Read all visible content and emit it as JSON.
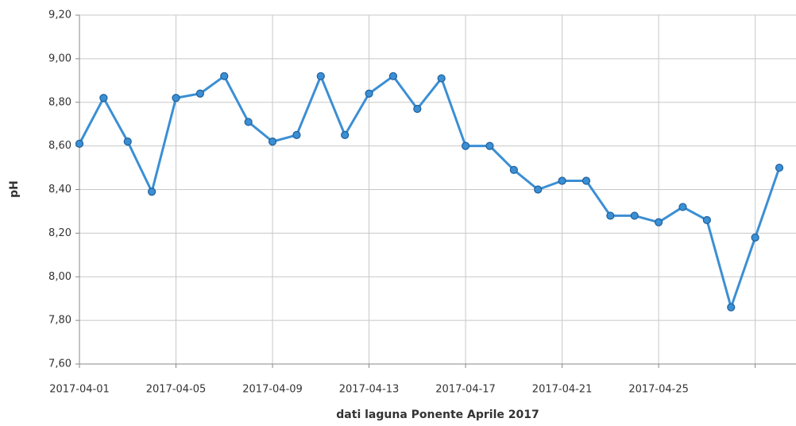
{
  "chart_data": {
    "type": "line",
    "x_label": "dati laguna Ponente Aprile 2017",
    "y_label": "pH",
    "x": [
      "2017-04-01",
      "2017-04-02",
      "2017-04-03",
      "2017-04-04",
      "2017-04-05",
      "2017-04-06",
      "2017-04-07",
      "2017-04-08",
      "2017-04-09",
      "2017-04-10",
      "2017-04-11",
      "2017-04-12",
      "2017-04-13",
      "2017-04-14",
      "2017-04-15",
      "2017-04-16",
      "2017-04-17",
      "2017-04-18",
      "2017-04-19",
      "2017-04-20",
      "2017-04-21",
      "2017-04-22",
      "2017-04-23",
      "2017-04-24",
      "2017-04-25",
      "2017-04-26",
      "2017-04-27",
      "2017-04-28",
      "2017-04-29",
      "2017-04-30"
    ],
    "series": [
      {
        "color": "#3b8fd4",
        "values": [
          8.61,
          8.82,
          8.62,
          8.39,
          8.82,
          8.84,
          8.92,
          8.71,
          8.62,
          8.65,
          8.92,
          8.65,
          8.84,
          8.92,
          8.77,
          8.91,
          8.6,
          8.6,
          8.49,
          8.4,
          8.44,
          8.44,
          8.28,
          8.28,
          8.25,
          8.32,
          8.26,
          7.86,
          8.18,
          8.5
        ]
      }
    ],
    "xlim": [
      "2017-04-01",
      "2017-04-30"
    ],
    "xticks": [
      "2017-04-01",
      "2017-04-05",
      "2017-04-09",
      "2017-04-13",
      "2017-04-17",
      "2017-04-21",
      "2017-04-25",
      {
        "value": "2017-04-29",
        "label": null
      }
    ],
    "ylim": [
      7.6,
      9.2
    ],
    "yticks": [
      {
        "value": 7.6,
        "label": "7,60"
      },
      {
        "value": 7.8,
        "label": "7,80"
      },
      {
        "value": 8.0,
        "label": "8,00"
      },
      {
        "value": 8.2,
        "label": "8,20"
      },
      {
        "value": 8.4,
        "label": "8,40"
      },
      {
        "value": 8.6,
        "label": "8,60"
      },
      {
        "value": 8.8,
        "label": "8,80"
      },
      {
        "value": 9.0,
        "label": "9,00"
      },
      {
        "value": 9.2,
        "label": "9,20"
      }
    ],
    "grid": true
  }
}
